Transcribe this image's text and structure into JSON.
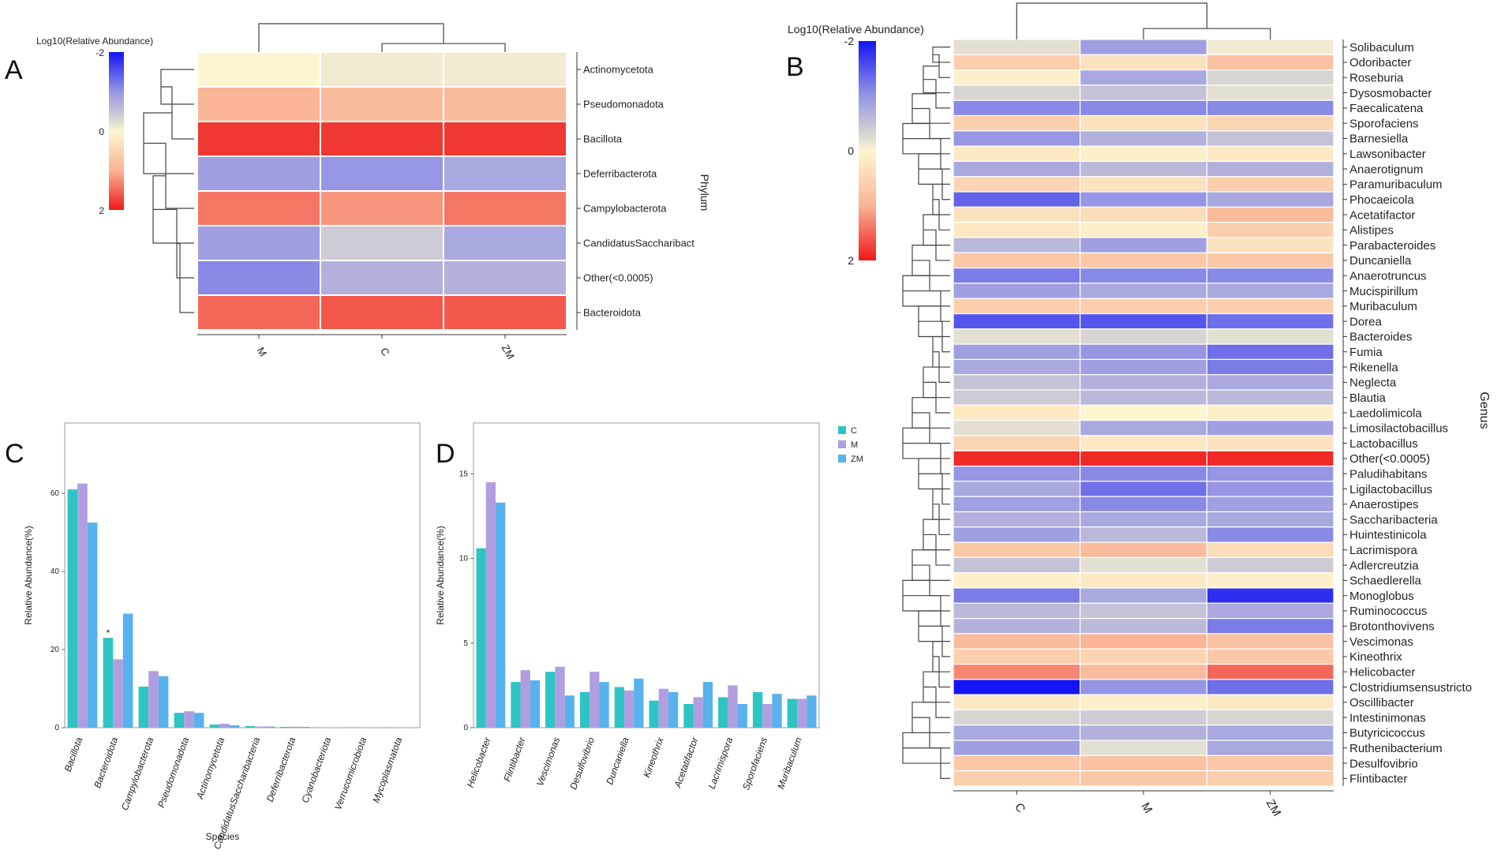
{
  "figure": {
    "panel_letters": {
      "A": "A",
      "B": "B",
      "C": "C",
      "D": "D"
    }
  },
  "chart_data": [
    {
      "id": "A",
      "type": "heatmap",
      "title": "",
      "legend_title": "Log10(Relative Abundance)",
      "legend_ticks": [
        "-2",
        "0",
        "2"
      ],
      "value_range": [
        -2,
        2
      ],
      "ylabel": "Phylum",
      "columns": [
        "M",
        "C",
        "ZM"
      ],
      "rows": [
        "Actinomycetota",
        "Pseudomonadota",
        "Bacillota",
        "Deferribacterota",
        "Campylobacterota",
        "CandidatusSaccharibact",
        "Other(<0.0005)",
        "Bacteroidota"
      ],
      "values": [
        [
          0.0,
          -0.1,
          -0.1
        ],
        [
          1.0,
          0.9,
          0.9
        ],
        [
          1.8,
          1.8,
          1.8
        ],
        [
          -0.9,
          -1.0,
          -0.8
        ],
        [
          1.4,
          1.2,
          1.4
        ],
        [
          -0.9,
          -0.4,
          -0.8
        ],
        [
          -1.1,
          -0.7,
          -0.7
        ],
        [
          1.5,
          1.6,
          1.6
        ]
      ]
    },
    {
      "id": "B",
      "type": "heatmap",
      "title": "",
      "legend_title": "Log10(Relative Abundance)",
      "legend_ticks": [
        "-2",
        "0",
        "2"
      ],
      "value_range": [
        -2,
        2
      ],
      "ylabel": "Genus",
      "columns": [
        "C",
        "M",
        "ZM"
      ],
      "rows": [
        "Solibaculum",
        "Odoribacter",
        "Roseburia",
        "Dysosmobacter",
        "Faecalicatena",
        "Sporofaciens",
        "Barnesiella",
        "Lawsonibacter",
        "Anaerotignum",
        "Paramuribaculum",
        "Phocaeicola",
        "Acetatifactor",
        "Alistipes",
        "Parabacteroides",
        "Duncaniella",
        "Anaerotruncus",
        "Mucispirillum",
        "Muribaculum",
        "Dorea",
        "Bacteroides",
        "Fumia",
        "Rikenella",
        "Neglecta",
        "Blautia",
        "Laedolimicola",
        "Limosilactobacillus",
        "Lactobacillus",
        "Other(<0.0005)",
        "Paludihabitans",
        "Ligilactobacillus",
        "Anaerostipes",
        "Saccharibacteria",
        "Huintestinicola",
        "Lacrimispora",
        "Adlercreutzia",
        "Schaedlerella",
        "Monoglobus",
        "Ruminococcus",
        "Brotonthovivens",
        "Vescimonas",
        "Kineothrix",
        "Helicobacter",
        "Clostridiumsensustricto",
        "Oscillibacter",
        "Intestinimonas",
        "Butyricicoccus",
        "Ruthenibacterium",
        "Desulfovibrio",
        "Flintibacter"
      ],
      "values": [
        [
          -0.2,
          -0.9,
          -0.1
        ],
        [
          0.6,
          0.3,
          0.8
        ],
        [
          0.1,
          -0.8,
          -0.3
        ],
        [
          -0.3,
          -0.5,
          -0.2
        ],
        [
          -1.1,
          -1.1,
          -1.1
        ],
        [
          0.6,
          0.3,
          0.5
        ],
        [
          -1.0,
          -0.7,
          -0.5
        ],
        [
          0.2,
          0.1,
          0.2
        ],
        [
          -0.8,
          -0.6,
          -0.7
        ],
        [
          0.5,
          0.3,
          0.6
        ],
        [
          -1.4,
          -1.0,
          -0.8
        ],
        [
          0.3,
          0.4,
          0.9
        ],
        [
          0.2,
          0.1,
          0.6
        ],
        [
          -0.6,
          -0.9,
          0.3
        ],
        [
          0.7,
          0.7,
          0.7
        ],
        [
          -1.2,
          -1.1,
          -1.1
        ],
        [
          -0.9,
          -0.8,
          -0.8
        ],
        [
          0.6,
          0.6,
          0.6
        ],
        [
          -1.5,
          -1.5,
          -1.3
        ],
        [
          -0.2,
          -0.3,
          -0.2
        ],
        [
          -0.9,
          -1.0,
          -1.3
        ],
        [
          -0.8,
          -0.9,
          -1.2
        ],
        [
          -0.5,
          -0.7,
          -0.8
        ],
        [
          -0.4,
          -0.6,
          -0.6
        ],
        [
          0.2,
          0.0,
          0.1
        ],
        [
          -0.2,
          -0.8,
          -0.9
        ],
        [
          0.5,
          0.2,
          0.3
        ],
        [
          1.9,
          1.9,
          1.9
        ],
        [
          -1.0,
          -1.1,
          -1.0
        ],
        [
          -0.8,
          -1.3,
          -1.0
        ],
        [
          -0.9,
          -1.1,
          -0.9
        ],
        [
          -0.7,
          -0.8,
          -0.8
        ],
        [
          -0.9,
          -0.6,
          -1.1
        ],
        [
          0.7,
          0.9,
          0.4
        ],
        [
          -0.5,
          -0.2,
          -0.4
        ],
        [
          0.1,
          0.2,
          0.1
        ],
        [
          -1.2,
          -0.8,
          -1.8
        ],
        [
          -0.6,
          -0.5,
          -0.8
        ],
        [
          -0.7,
          -0.6,
          -1.2
        ],
        [
          0.9,
          1.0,
          0.8
        ],
        [
          0.6,
          0.5,
          0.7
        ],
        [
          1.3,
          0.9,
          1.5
        ],
        [
          -2.0,
          -1.0,
          -1.3
        ],
        [
          0.2,
          0.1,
          0.2
        ],
        [
          -0.3,
          -0.4,
          -0.3
        ],
        [
          -0.8,
          -0.7,
          -0.8
        ],
        [
          -0.9,
          -0.2,
          -0.8
        ],
        [
          0.7,
          0.8,
          0.7
        ],
        [
          0.6,
          0.7,
          0.6
        ]
      ]
    },
    {
      "id": "C",
      "type": "bar",
      "title": "",
      "xlabel": "Species",
      "ylabel": "Relative Abundance(%)",
      "ylim": [
        0,
        78
      ],
      "yticks": [
        0,
        20,
        40,
        60
      ],
      "categories": [
        "Bacillota",
        "Bacteroidota",
        "Campylobacterota",
        "Pseudomonadota",
        "Actinomycetota",
        "CandidatusSaccharibacteria",
        "Deferribacterota",
        "Cyanobacteriota",
        "Verrucomicrobiota",
        "Mycoplasmatota"
      ],
      "series": [
        {
          "name": "C",
          "color": "#2ec4c4",
          "values": [
            61,
            23,
            10.5,
            3.8,
            0.8,
            0.4,
            0.2,
            0.1,
            0.05,
            0.03
          ]
        },
        {
          "name": "M",
          "color": "#b09ee0",
          "values": [
            62.5,
            17.5,
            14.5,
            4.2,
            1.0,
            0.3,
            0.25,
            0.1,
            0.05,
            0.03
          ]
        },
        {
          "name": "ZM",
          "color": "#58b2ee",
          "values": [
            52.5,
            29.2,
            13.2,
            3.8,
            0.6,
            0.3,
            0.2,
            0.1,
            0.05,
            0.03
          ]
        }
      ],
      "annotations": [
        {
          "category": "Bacteroidota",
          "series": "C",
          "text": "*"
        }
      ]
    },
    {
      "id": "D",
      "type": "bar",
      "title": "",
      "xlabel": "",
      "ylabel": "Relative Abundance(%)",
      "ylim": [
        0,
        18
      ],
      "yticks": [
        0,
        5,
        10,
        15
      ],
      "categories": [
        "Helicobacter",
        "Flintibacter",
        "Vescimonas",
        "Desulfovibrio",
        "Duncaniella",
        "Kineothrix",
        "Acetatifactor",
        "Lacrimispora",
        "Sporofaciens",
        "Muribaculum"
      ],
      "series": [
        {
          "name": "C",
          "color": "#2ec4c4",
          "values": [
            10.6,
            2.7,
            3.3,
            2.1,
            2.4,
            1.6,
            1.4,
            1.8,
            2.1,
            1.7
          ]
        },
        {
          "name": "M",
          "color": "#b09ee0",
          "values": [
            14.5,
            3.4,
            3.6,
            3.3,
            2.2,
            2.3,
            1.8,
            2.5,
            1.4,
            1.7
          ]
        },
        {
          "name": "ZM",
          "color": "#58b2ee",
          "values": [
            13.3,
            2.8,
            1.9,
            2.7,
            2.9,
            2.1,
            2.7,
            1.4,
            2.0,
            1.9
          ]
        }
      ],
      "legend": [
        "C",
        "M",
        "ZM"
      ]
    }
  ]
}
